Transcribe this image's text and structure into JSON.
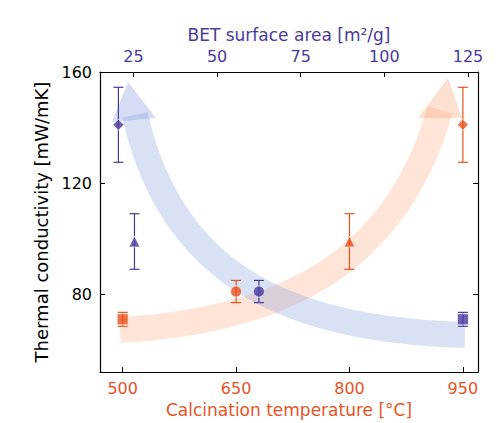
{
  "chart_data": {
    "type": "scatter",
    "x_label": "Calcination temperature [°C]",
    "x2_label": "BET surface area [m²/g]",
    "y_label": "Thermal conductivity [mW/mK]",
    "xlim": [
      470,
      970
    ],
    "xticks": [
      500,
      650,
      800,
      950
    ],
    "x2lim": [
      15,
      128
    ],
    "x2ticks": [
      25,
      50,
      75,
      100,
      125
    ],
    "ylim": [
      52,
      160
    ],
    "yticks": [
      80,
      120,
      160
    ],
    "grid": false,
    "series": [
      {
        "axis": "x",
        "color": "#e8531f",
        "x": [
          500,
          650,
          800,
          950
        ],
        "values": [
          71,
          81,
          99,
          141
        ],
        "errors": [
          2.5,
          4,
          10,
          13.5
        ],
        "markers": [
          "square",
          "circle",
          "triangle",
          "diamond"
        ]
      },
      {
        "axis": "x2",
        "color": "#4a3aa0",
        "x": [
          20.5,
          25.3,
          62.5,
          123.5
        ],
        "values": [
          141,
          99,
          81,
          71
        ],
        "errors": [
          13.5,
          10,
          4,
          2.5
        ],
        "markers": [
          "diamond",
          "triangle",
          "circle",
          "square"
        ]
      }
    ]
  }
}
